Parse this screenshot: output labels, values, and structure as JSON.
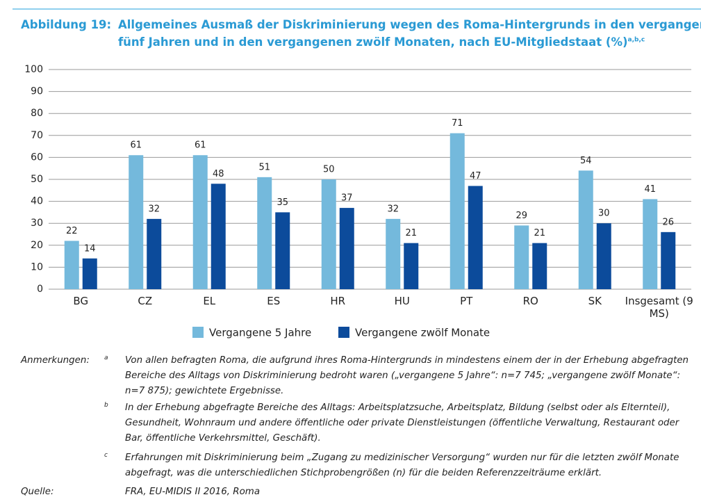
{
  "figure_label": "Abbildung 19:",
  "chart_data": {
    "type": "bar",
    "title": [
      "Allgemeines Ausmaß der Diskriminierung wegen des Roma-Hintergrunds in den vergangenen",
      "fünf Jahren und in den vergangenen zwölf Monaten, nach EU-Mitgliedstaat (%)"
    ],
    "title_superscript": "a,b,c",
    "categories": [
      "BG",
      "CZ",
      "EL",
      "ES",
      "HR",
      "HU",
      "PT",
      "RO",
      "SK",
      "Insgesamt (9 MS)"
    ],
    "series": [
      {
        "name": "Vergangene 5 Jahre",
        "color": "#74b9dc",
        "values": [
          22,
          61,
          61,
          51,
          50,
          32,
          71,
          29,
          54,
          41
        ]
      },
      {
        "name": "Vergangene zwölf Monate",
        "color": "#0c4b9b",
        "values": [
          14,
          32,
          48,
          35,
          37,
          21,
          47,
          21,
          30,
          26
        ]
      }
    ],
    "ylim": [
      0,
      100
    ],
    "yticks": [
      0,
      10,
      20,
      30,
      40,
      50,
      60,
      70,
      80,
      90,
      100
    ],
    "grid": true,
    "legend": "bottom"
  },
  "notes": {
    "label": "Anmerkungen:",
    "items": [
      {
        "marker": "a",
        "text": "Von allen befragten Roma, die aufgrund ihres Roma-Hintergrunds in mindestens einem der in der Erhebung abgefragten Bereiche des Alltags von Diskriminierung bedroht waren („vergangene 5 Jahre“: n=7 745; „vergangene zwölf Monate“: n=7 875); gewichtete Ergebnisse."
      },
      {
        "marker": "b",
        "text": "In der Erhebung abgefragte Bereiche des Alltags: Arbeitsplatzsuche, Arbeitsplatz, Bildung (selbst oder als Elternteil), Gesundheit, Wohnraum und andere öffentliche oder private Dienstleistungen (öffentliche Verwaltung, Restaurant oder Bar, öffentliche Verkehrsmittel, Geschäft)."
      },
      {
        "marker": "c",
        "text": "Erfahrungen mit Diskriminierung beim „Zugang zu medizinischer Versorgung“ wurden nur für die letzten zwölf Monate abgefragt, was die unterschiedlichen Stichprobengrößen (n) für die beiden Referenzzeiträume erklärt."
      }
    ]
  },
  "source": {
    "label": "Quelle:",
    "text": "FRA, EU-MIDIS II 2016, Roma"
  }
}
